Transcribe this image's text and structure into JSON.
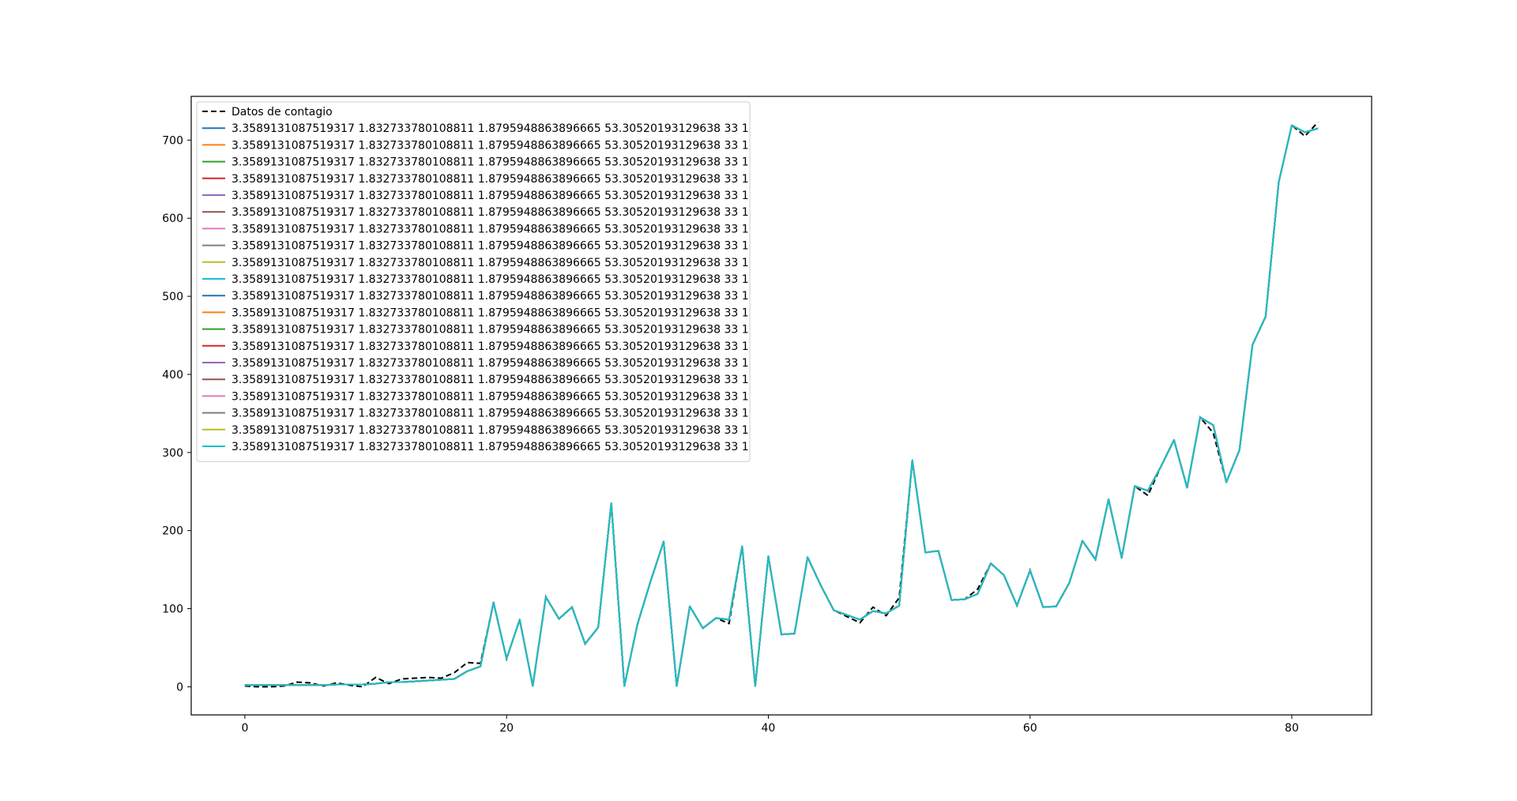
{
  "chart_data": {
    "type": "line",
    "title": "",
    "xlabel": "",
    "ylabel": "",
    "xlim": [
      -4.1,
      86.1
    ],
    "ylim": [
      -36,
      756
    ],
    "xticks": [
      0,
      20,
      40,
      60,
      80
    ],
    "xtick_labels": [
      "0",
      "20",
      "40",
      "60",
      "80"
    ],
    "yticks": [
      0,
      100,
      200,
      300,
      400,
      500,
      600,
      700
    ],
    "ytick_labels": [
      "0",
      "100",
      "200",
      "300",
      "400",
      "500",
      "600",
      "700"
    ],
    "grid": false,
    "legend_position": "top-left",
    "observed": {
      "name": "Datos de contagio",
      "color": "#000000",
      "dashed": true,
      "x": [
        0,
        1,
        2,
        3,
        4,
        5,
        6,
        7,
        8,
        9,
        10,
        11,
        12,
        13,
        14,
        15,
        16,
        17,
        18,
        19,
        20,
        21,
        22,
        23,
        24,
        25,
        26,
        27,
        28,
        29,
        30,
        31,
        32,
        33,
        34,
        35,
        36,
        37,
        38,
        39,
        40,
        41,
        42,
        43,
        44,
        45,
        46,
        47,
        48,
        49,
        50,
        51,
        52,
        53,
        54,
        55,
        56,
        57,
        58,
        59,
        60,
        61,
        62,
        63,
        64,
        65,
        66,
        67,
        68,
        69,
        70,
        71,
        72,
        73,
        74,
        75,
        76,
        77,
        78,
        79,
        80,
        81,
        82
      ],
      "y": [
        1,
        0,
        0,
        1,
        6,
        5,
        1,
        5,
        2,
        0,
        12,
        4,
        10,
        11,
        12,
        11,
        18,
        31,
        30,
        108,
        36,
        86,
        1,
        115,
        87,
        102,
        55,
        76,
        235,
        1,
        80,
        135,
        186,
        1,
        103,
        75,
        88,
        81,
        180,
        1,
        167,
        67,
        68,
        166,
        130,
        98,
        90,
        82,
        102,
        91,
        114,
        290,
        172,
        174,
        111,
        112,
        125,
        158,
        143,
        104,
        149,
        102,
        103,
        133,
        187,
        163,
        240,
        165,
        257,
        245,
        282,
        316,
        255,
        345,
        325,
        262,
        303,
        438,
        474,
        646,
        719,
        705,
        723
      ]
    },
    "fit_color_cycle": [
      "#1f77b4",
      "#ff7f0e",
      "#2ca02c",
      "#d62728",
      "#9467bd",
      "#8c564b",
      "#e377c2",
      "#7f7f7f",
      "#bcbd22",
      "#17becf",
      "#1f77b4",
      "#ff7f0e",
      "#2ca02c",
      "#d62728",
      "#9467bd",
      "#8c564b",
      "#e377c2",
      "#7f7f7f",
      "#bcbd22",
      "#17becf"
    ],
    "fit_label": "3.3589131087519317 1.832733780108811 1.8795948863896665 53.30520193129638 33 1",
    "fit_count": 20,
    "fit_y": [
      2,
      2,
      2,
      2,
      2,
      2,
      2,
      3,
      3,
      3,
      4,
      6,
      6,
      7,
      8,
      9,
      10,
      20,
      26,
      108,
      36,
      86,
      1,
      115,
      87,
      102,
      55,
      76,
      235,
      1,
      80,
      135,
      186,
      1,
      103,
      75,
      88,
      86,
      180,
      1,
      167,
      67,
      68,
      166,
      130,
      98,
      92,
      86,
      97,
      94,
      104,
      290,
      172,
      174,
      111,
      112,
      119,
      158,
      143,
      104,
      149,
      102,
      103,
      133,
      187,
      163,
      240,
      165,
      257,
      251,
      282,
      316,
      255,
      345,
      335,
      262,
      303,
      438,
      474,
      646,
      719,
      710,
      715
    ]
  }
}
